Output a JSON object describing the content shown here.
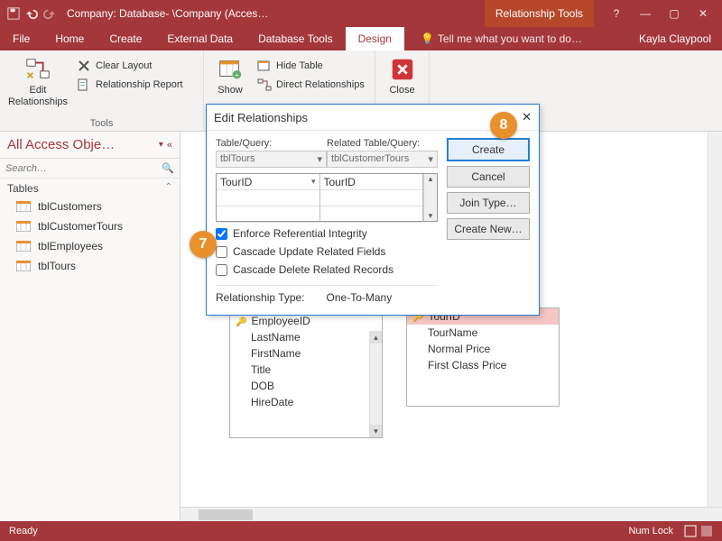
{
  "colors": {
    "brand": "#a4373a",
    "accent": "#2b7cd3",
    "callout": "#e8912c"
  },
  "titlebar": {
    "title": "Company: Database- \\Company (Acces…",
    "context_tab": "Relationship Tools",
    "help": "?",
    "minimize": "—",
    "restore": "▢",
    "close": "✕"
  },
  "tabs": {
    "file": "File",
    "home": "Home",
    "create": "Create",
    "external": "External Data",
    "dbtools": "Database Tools",
    "design": "Design",
    "tellme": "Tell me what you want to do…",
    "user": "Kayla Claypool"
  },
  "ribbon": {
    "tools": {
      "edit_rel": "Edit\nRelationships",
      "clear_layout": "Clear Layout",
      "rel_report": "Relationship Report",
      "group": "Tools"
    },
    "show": {
      "show": "Show",
      "hide_table": "Hide Table",
      "direct": "Direct Relationships"
    },
    "close": {
      "close": "Close"
    }
  },
  "nav": {
    "header": "All Access Obje…",
    "search_placeholder": "Search…",
    "group": "Tables",
    "items": [
      "tblCustomers",
      "tblCustomerTours",
      "tblEmployees",
      "tblTours"
    ]
  },
  "dialog": {
    "title": "Edit Relationships",
    "help": "?",
    "close": "✕",
    "left_label": "Table/Query:",
    "right_label": "Related Table/Query:",
    "left_combo": "tblTours",
    "right_combo": "tblCustomerTours",
    "left_field": "TourID",
    "right_field": "TourID",
    "chk_enforce": "Enforce Referential Integrity",
    "chk_cascade_update": "Cascade Update Related Fields",
    "chk_cascade_delete": "Cascade Delete Related Records",
    "reltype_label": "Relationship Type:",
    "reltype_value": "One-To-Many",
    "btn_create": "Create",
    "btn_cancel": "Cancel",
    "btn_join": "Join Type…",
    "btn_new": "Create New…"
  },
  "fieldlists": {
    "employees": {
      "fields": [
        "EmployeeID",
        "LastName",
        "FirstName",
        "Title",
        "DOB",
        "HireDate"
      ]
    },
    "tours": {
      "title_field": "TourID",
      "fields": [
        "TourName",
        "Normal Price",
        "First Class Price"
      ]
    }
  },
  "callouts": {
    "c7": "7",
    "c8": "8"
  },
  "status": {
    "ready": "Ready",
    "numlock": "Num Lock"
  }
}
